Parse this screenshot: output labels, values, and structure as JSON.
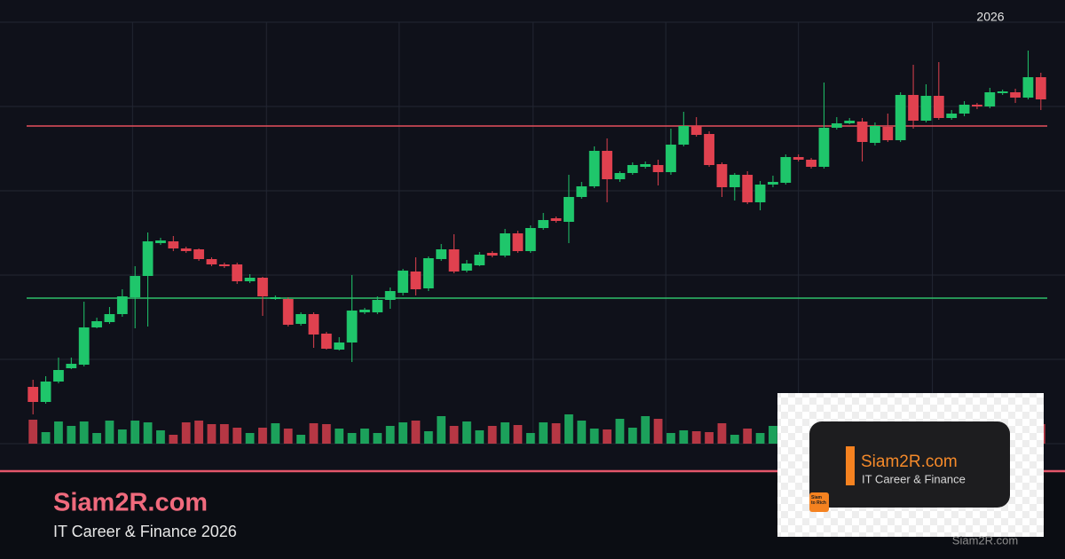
{
  "chart_data": {
    "type": "candlestick",
    "year_label": "2026",
    "open": [
      64,
      47,
      70,
      85,
      89,
      131,
      137,
      146,
      165,
      189,
      226,
      228,
      220,
      219,
      208,
      202,
      202,
      183,
      187,
      163,
      163,
      135,
      146,
      124,
      106,
      114,
      148,
      148,
      162,
      170,
      194,
      175,
      208,
      219,
      195,
      201,
      215,
      212,
      237,
      217,
      243,
      254,
      250,
      278,
      290,
      330,
      298,
      305,
      312,
      314,
      306,
      337,
      358,
      349,
      315,
      289,
      303,
      272,
      292,
      294,
      323,
      320,
      312,
      356,
      361,
      363,
      339,
      357,
      342,
      393,
      364,
      392,
      367,
      372,
      382,
      380,
      395,
      396,
      390,
      413
    ],
    "high": [
      72,
      76,
      97,
      97,
      160,
      142,
      154,
      174,
      200,
      238,
      232,
      234,
      222,
      220,
      210,
      204,
      204,
      191,
      188,
      167,
      165,
      148,
      148,
      126,
      120,
      190,
      153,
      166,
      176,
      197,
      210,
      211,
      225,
      236,
      207,
      216,
      217,
      242,
      240,
      246,
      260,
      256,
      303,
      295,
      335,
      344,
      307,
      317,
      318,
      320,
      355,
      374,
      368,
      352,
      317,
      305,
      307,
      296,
      302,
      326,
      326,
      322,
      407,
      368,
      367,
      367,
      362,
      372,
      396,
      427,
      405,
      430,
      376,
      386,
      384,
      401,
      399,
      400,
      443,
      418
    ],
    "low": [
      33,
      45,
      68,
      84,
      87,
      130,
      135,
      143,
      130,
      132,
      224,
      217,
      215,
      206,
      200,
      198,
      180,
      181,
      144,
      162,
      132,
      133,
      108,
      106,
      105,
      92,
      146,
      146,
      152,
      167,
      167,
      172,
      206,
      192,
      193,
      200,
      210,
      210,
      215,
      215,
      241,
      249,
      226,
      276,
      288,
      272,
      295,
      303,
      310,
      291,
      303,
      335,
      346,
      312,
      278,
      274,
      270,
      263,
      289,
      292,
      318,
      310,
      310,
      354,
      360,
      318,
      336,
      340,
      340,
      355,
      362,
      365,
      365,
      369,
      377,
      378,
      393,
      384,
      388,
      376
    ],
    "close": [
      47,
      70,
      83,
      90,
      131,
      138,
      146,
      166,
      189,
      228,
      229,
      220,
      217,
      208,
      202,
      200,
      183,
      187,
      166,
      165,
      134,
      146,
      123,
      107,
      114,
      150,
      151,
      162,
      172,
      195,
      174,
      209,
      219,
      194,
      203,
      213,
      212,
      237,
      217,
      243,
      252,
      251,
      278,
      290,
      330,
      298,
      305,
      314,
      315,
      306,
      337,
      358,
      348,
      314,
      289,
      303,
      272,
      292,
      295,
      323,
      320,
      312,
      356,
      361,
      364,
      340,
      358,
      342,
      393,
      364,
      392,
      367,
      372,
      382,
      380,
      396,
      397,
      390,
      413,
      388
    ],
    "volume": [
      27,
      13,
      25,
      20,
      25,
      12,
      26,
      16,
      26,
      24,
      15,
      10,
      24,
      26,
      22,
      22,
      18,
      12,
      18,
      23,
      17,
      10,
      23,
      22,
      17,
      12,
      17,
      12,
      20,
      24,
      26,
      14,
      31,
      20,
      25,
      15,
      20,
      24,
      21,
      12,
      24,
      23,
      33,
      26,
      17,
      16,
      28,
      18,
      31,
      28,
      12,
      15,
      14,
      13,
      23,
      10,
      17,
      12,
      20,
      null,
      null,
      null,
      null,
      null,
      null,
      null,
      null,
      null,
      null,
      null,
      null,
      null,
      null,
      null,
      null,
      null,
      null,
      null,
      null,
      22
    ],
    "up_color": "#1fc66b",
    "down_color": "#e0414f",
    "resistance": 358,
    "resistance_color": "#e5505c",
    "support": 164,
    "support_color": "#2fbf6a",
    "xlim": [
      0,
      80
    ],
    "xticks": [
      8.3,
      18.8,
      29.2,
      39.7,
      50.1,
      60.5,
      71
    ],
    "ylim": [
      0,
      475
    ],
    "yticks": [
      0,
      95,
      190,
      285,
      380,
      475
    ],
    "volume_lim": [
      0,
      100
    ],
    "grid": true
  },
  "footer": {
    "title": "Siam2R.com",
    "subtitle": "IT Career & Finance 2026",
    "watermark": "Siam2R.com"
  },
  "logo": {
    "title": "Siam2R.com",
    "subtitle": "IT Career & Finance",
    "badge": "Siam to Rich"
  }
}
